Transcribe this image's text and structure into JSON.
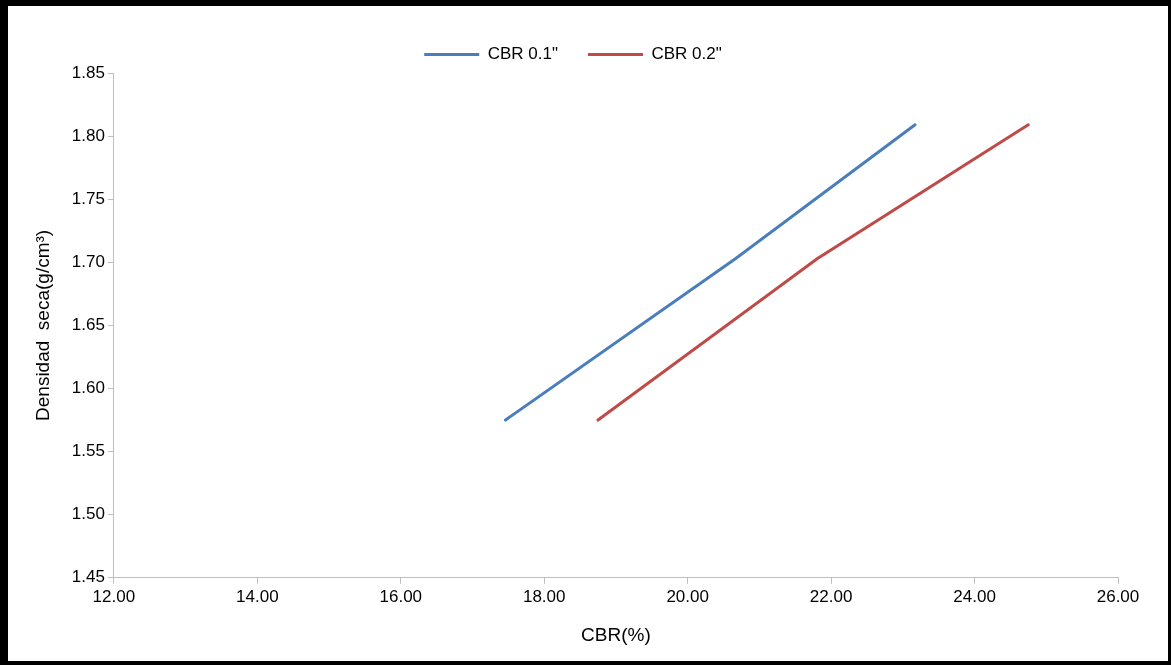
{
  "chart_data": {
    "type": "line",
    "xlabel": "CBR(%)",
    "ylabel": "Densidad  seca(g/cm³)",
    "xlim": [
      12,
      26
    ],
    "xticks": [
      {
        "value": 12,
        "label": "12.00"
      },
      {
        "value": 14,
        "label": "14.00"
      },
      {
        "value": 16,
        "label": "16.00"
      },
      {
        "value": 18,
        "label": "18.00"
      },
      {
        "value": 20,
        "label": "20.00"
      },
      {
        "value": 22,
        "label": "22.00"
      },
      {
        "value": 24,
        "label": "24.00"
      },
      {
        "value": 26,
        "label": "26.00"
      }
    ],
    "ylim": [
      1.45,
      1.85
    ],
    "yticks": [
      1.45,
      {
        "value": 1.5,
        "label": "1.50"
      },
      1.55,
      {
        "value": 1.6,
        "label": "1.60"
      },
      1.65,
      {
        "value": 1.7,
        "label": "1.70"
      },
      1.75,
      {
        "value": 1.8,
        "label": "1.80"
      },
      1.85
    ],
    "grid": false,
    "legend": "top",
    "marker": "none",
    "series": [
      {
        "name": "CBR 0.1\"",
        "color": "#4a7ebb",
        "x": [
          17.46,
          20.67,
          23.17
        ],
        "values": [
          1.575,
          1.703,
          1.809
        ]
      },
      {
        "name": "CBR 0.2\"",
        "color": "#be4b48",
        "x": [
          18.75,
          21.81,
          24.75
        ],
        "values": [
          1.575,
          1.703,
          1.809
        ]
      }
    ]
  }
}
